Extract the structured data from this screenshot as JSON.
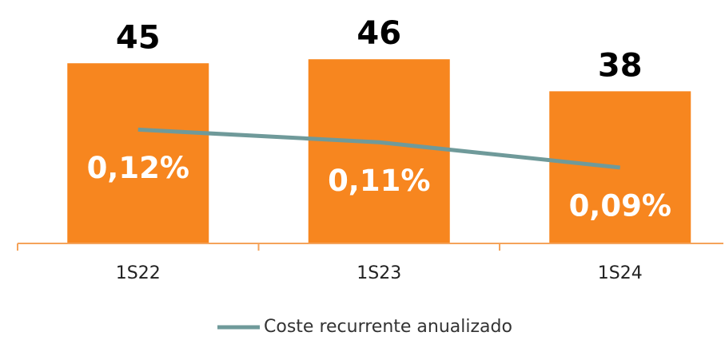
{
  "chart_data": {
    "type": "bar+line",
    "categories": [
      "1S22",
      "1S23",
      "1S24"
    ],
    "values": [
      45,
      46,
      38
    ],
    "color": "#f7861f",
    "ylim": [
      0,
      60
    ],
    "series": [
      {
        "name": "Coste recurrente anualizado",
        "color": "#6f9a9a",
        "axis": "y2",
        "values": [
          0.12,
          0.11,
          0.09
        ],
        "value_labels": [
          "0,12%",
          "0,11%",
          "0,09%"
        ]
      }
    ],
    "y2lim": [
      0.03,
      0.22
    ],
    "legend": "bottom"
  }
}
